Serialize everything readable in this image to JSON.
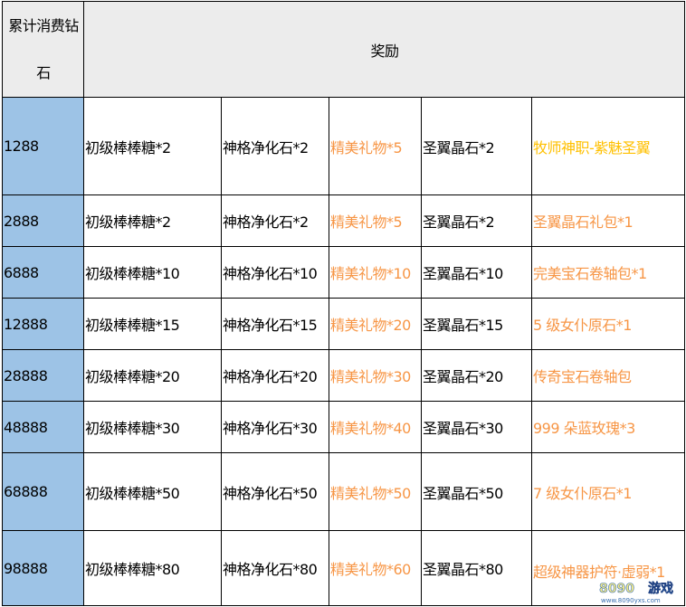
{
  "header": {
    "col1": "累计消费钻石",
    "col2": "奖励"
  },
  "colors": {
    "amount_bg": "#9dc3e6",
    "header_bg": "#ececec",
    "orange": "#f79646",
    "gold": "#ffc000"
  },
  "rows": [
    {
      "amount": "1288",
      "r1": "初级棒棒糖*2",
      "r2": "神格净化石*2",
      "r3": "精美礼物*5",
      "r4": "圣翼晶石*2",
      "r5": "牧师神职-紫魅圣翼",
      "r5_color": "gold"
    },
    {
      "amount": "2888",
      "r1": "初级棒棒糖*2",
      "r2": "神格净化石*2",
      "r3": "精美礼物*5",
      "r4": "圣翼晶石*2",
      "r5": "圣翼晶石礼包*1",
      "r5_color": "orange"
    },
    {
      "amount": "6888",
      "r1": "初级棒棒糖*10",
      "r2": "神格净化石*10",
      "r3": "精美礼物*10",
      "r4": "圣翼晶石*10",
      "r5": "完美宝石卷轴包*1",
      "r5_color": "orange"
    },
    {
      "amount": "12888",
      "r1": "初级棒棒糖*15",
      "r2": "神格净化石*15",
      "r3": "精美礼物*20",
      "r4": "圣翼晶石*15",
      "r5": "5 级女仆原石*1",
      "r5_color": "orange"
    },
    {
      "amount": "28888",
      "r1": "初级棒棒糖*20",
      "r2": "神格净化石*20",
      "r3": "精美礼物*30",
      "r4": "圣翼晶石*20",
      "r5": "传奇宝石卷轴包",
      "r5_color": "orange"
    },
    {
      "amount": "48888",
      "r1": "初级棒棒糖*30",
      "r2": "神格净化石*30",
      "r3": "精美礼物*40",
      "r4": "圣翼晶石*30",
      "r5": "999 朵蓝玫瑰*3",
      "r5_color": "orange"
    },
    {
      "amount": "68888",
      "r1": "初级棒棒糖*50",
      "r2": "神格净化石*50",
      "r3": "精美礼物*50",
      "r4": "圣翼晶石*50",
      "r5": "7 级女仆原石*1",
      "r5_color": "orange"
    },
    {
      "amount": "98888",
      "r1": "初级棒棒糖*80",
      "r2": "神格净化石*80",
      "r3": "精美礼物*60",
      "r4": "圣翼晶石*80",
      "r5": "超级神器护符·虚弱*1",
      "r5_color": "orange"
    }
  ],
  "watermark": {
    "logo": "8090 游戏",
    "url": "www.8090yxs.com"
  }
}
